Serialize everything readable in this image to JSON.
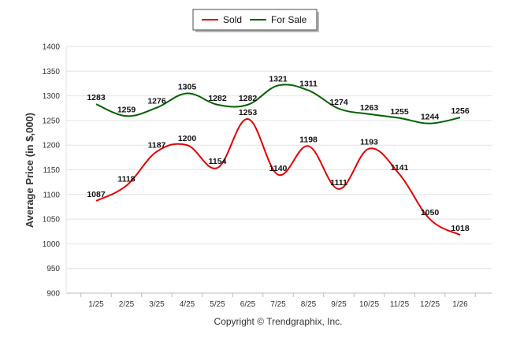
{
  "chart_data": {
    "type": "line",
    "categories": [
      "1/25",
      "2/25",
      "3/25",
      "4/25",
      "5/25",
      "6/25",
      "7/25",
      "8/25",
      "9/25",
      "10/25",
      "11/25",
      "12/25",
      "1/26"
    ],
    "series": [
      {
        "name": "Sold",
        "color": "#e00000",
        "values": [
          1087,
          1118,
          1187,
          1200,
          1154,
          1253,
          1140,
          1198,
          1111,
          1193,
          1141,
          1050,
          1018
        ]
      },
      {
        "name": "For Sale",
        "color": "#006000",
        "values": [
          1283,
          1259,
          1276,
          1305,
          1282,
          1282,
          1321,
          1311,
          1274,
          1263,
          1255,
          1244,
          1256
        ]
      }
    ],
    "yticks": [
      "900",
      "950",
      "1000",
      "1050",
      "1100",
      "1150",
      "1200",
      "1250",
      "1300",
      "1350",
      "1400"
    ],
    "ylim": [
      900,
      1400
    ],
    "ylabel": "Average Price (in $,000)",
    "xlabel": "",
    "legend_position": "top-center",
    "grid": true
  },
  "footer": {
    "copyright": "Copyright © Trendgraphix, Inc."
  }
}
